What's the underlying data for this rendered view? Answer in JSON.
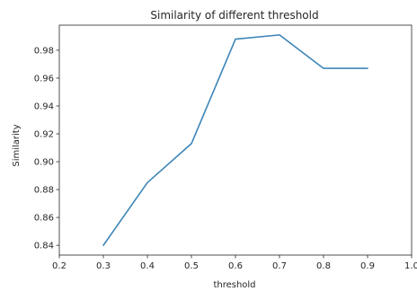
{
  "chart_data": {
    "type": "line",
    "title": "Similarity of different threshold",
    "xlabel": "threshold",
    "ylabel": "Similarity",
    "xlim": [
      0.2,
      1.0
    ],
    "ylim": [
      0.833,
      0.998
    ],
    "xticks": [
      0.2,
      0.3,
      0.4,
      0.5,
      0.6,
      0.7,
      0.8,
      0.9,
      1.0
    ],
    "xtick_labels": [
      "0.2",
      "0.3",
      "0.4",
      "0.5",
      "0.6",
      "0.7",
      "0.8",
      "0.9",
      "1.0"
    ],
    "yticks": [
      0.84,
      0.86,
      0.88,
      0.9,
      0.92,
      0.94,
      0.96,
      0.98
    ],
    "ytick_labels": [
      "0.84",
      "0.86",
      "0.88",
      "0.90",
      "0.92",
      "0.94",
      "0.96",
      "0.98"
    ],
    "grid": false,
    "series": [
      {
        "x": [
          0.3,
          0.4,
          0.5,
          0.6,
          0.7,
          0.8,
          0.9
        ],
        "y": [
          0.84,
          0.885,
          0.913,
          0.988,
          0.991,
          0.967,
          0.967
        ],
        "color": "#3d85b8"
      }
    ]
  }
}
